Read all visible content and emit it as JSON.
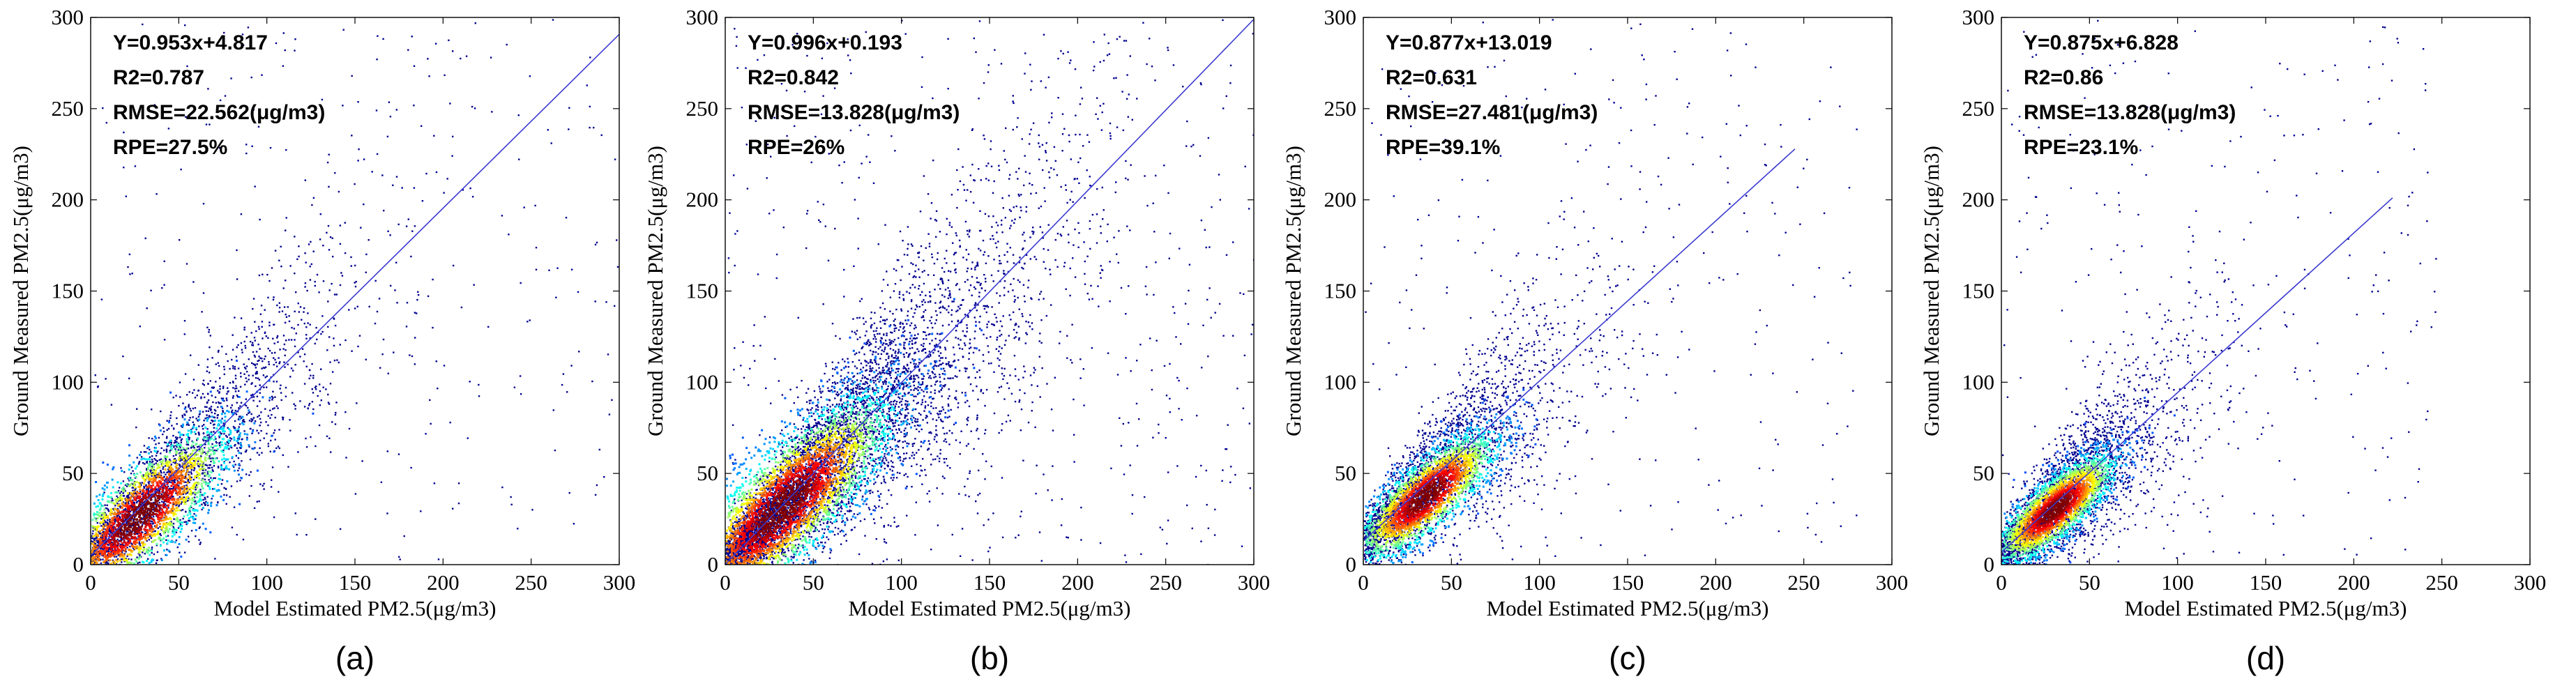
{
  "figure": {
    "panel_labels": [
      "(a)",
      "(b)",
      "(c)",
      "(d)"
    ]
  },
  "chart_data": [
    {
      "type": "scatter",
      "panel": "(a)",
      "title": "",
      "xlabel": "Model Estimated PM2.5(μg/m3)",
      "ylabel": "Ground Measured PM2.5(μg/m3)",
      "xlim": [
        0,
        300
      ],
      "ylim": [
        0,
        300
      ],
      "xticks": [
        0,
        50,
        100,
        150,
        200,
        250,
        300
      ],
      "yticks": [
        0,
        50,
        100,
        150,
        200,
        250,
        300
      ],
      "fit": {
        "slope": 0.953,
        "intercept": 4.817,
        "x_range": [
          0,
          300
        ]
      },
      "annotations": [
        "Y=0.953x+4.817",
        "R2=0.787",
        "RMSE=22.562(μg/m3)",
        "RPE=27.5%"
      ],
      "density": {
        "core_center": [
          27,
          27
        ],
        "spread": 45,
        "extent_x": 220,
        "outlier_extent": 300
      },
      "colors": {
        "fit_line": "#3a3ad0",
        "low_density": "#00008f",
        "high_density": "#ff0000"
      }
    },
    {
      "type": "scatter",
      "panel": "(b)",
      "title": "",
      "xlabel": "Model Estimated PM2.5(μg/m3)",
      "ylabel": "Ground Measured PM2.5(μg/m3)",
      "xlim": [
        0,
        300
      ],
      "ylim": [
        0,
        300
      ],
      "xticks": [
        0,
        50,
        100,
        150,
        200,
        250,
        300
      ],
      "yticks": [
        0,
        50,
        100,
        150,
        200,
        250,
        300
      ],
      "fit": {
        "slope": 0.996,
        "intercept": 0.193,
        "x_range": [
          0,
          300
        ]
      },
      "annotations": [
        "Y=0.996x+0.193",
        "R2=0.842",
        "RMSE=13.828(μg/m3)",
        "RPE=26%"
      ],
      "density": {
        "core_center": [
          32,
          32
        ],
        "spread": 55,
        "extent_x": 230,
        "outlier_extent": 300
      },
      "colors": {
        "fit_line": "#3a3ad0",
        "low_density": "#00008f",
        "high_density": "#ff0000"
      }
    },
    {
      "type": "scatter",
      "panel": "(c)",
      "title": "",
      "xlabel": "Model Estimated PM2.5(μg/m3)",
      "ylabel": "Ground Measured PM2.5(μg/m3)",
      "xlim": [
        0,
        300
      ],
      "ylim": [
        0,
        300
      ],
      "xticks": [
        0,
        50,
        100,
        150,
        200,
        250,
        300
      ],
      "yticks": [
        0,
        50,
        100,
        150,
        200,
        250,
        300
      ],
      "fit": {
        "slope": 0.877,
        "intercept": 13.019,
        "x_range": [
          0,
          245
        ]
      },
      "annotations": [
        "Y=0.877x+13.019",
        "R2=0.631",
        "RMSE=27.481(μg/m3)",
        "RPE=39.1%"
      ],
      "density": {
        "core_center": [
          35,
          38
        ],
        "spread": 35,
        "extent_x": 250,
        "outlier_extent": 280
      },
      "colors": {
        "fit_line": "#3a3ad0",
        "low_density": "#00008f",
        "high_density": "#ff0000"
      }
    },
    {
      "type": "scatter",
      "panel": "(d)",
      "title": "",
      "xlabel": "Model Estimated PM2.5(μg/m3)",
      "ylabel": "Ground Measured PM2.5(μg/m3)",
      "xlim": [
        0,
        300
      ],
      "ylim": [
        0,
        300
      ],
      "xticks": [
        0,
        50,
        100,
        150,
        200,
        250,
        300
      ],
      "yticks": [
        0,
        50,
        100,
        150,
        200,
        250,
        300
      ],
      "fit": {
        "slope": 0.875,
        "intercept": 6.828,
        "x_range": [
          0,
          222
        ]
      },
      "annotations": [
        "Y=0.875x+6.828",
        "R2=0.86",
        "RMSE=13.828(μg/m3)",
        "RPE=23.1%"
      ],
      "density": {
        "core_center": [
          30,
          31
        ],
        "spread": 30,
        "extent_x": 225,
        "outlier_extent": 250
      },
      "colors": {
        "fit_line": "#3a3ad0",
        "low_density": "#00008f",
        "high_density": "#ff0000"
      }
    }
  ]
}
